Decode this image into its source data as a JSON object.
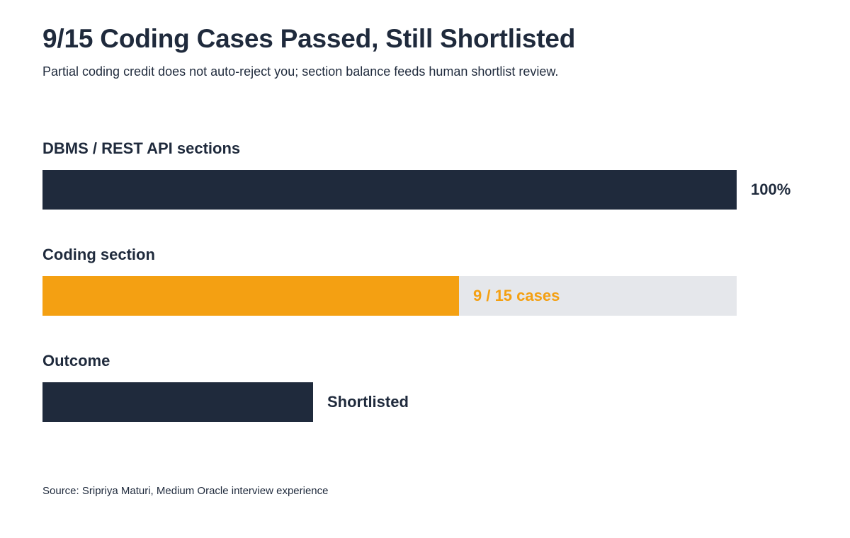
{
  "chart_data": {
    "type": "bar",
    "title": "9/15 Coding Cases Passed, Still Shortlisted",
    "subtitle": "Partial coding credit does not auto-reject you; section balance feeds human shortlist review.",
    "source": "Source: Sripriya Maturi, Medium Oracle interview experience",
    "bars": [
      {
        "category": "DBMS / REST API sections",
        "value": 1.0,
        "label": "100%",
        "color": "#1f2a3c",
        "label_color": "#1f2a3c",
        "track": false,
        "label_inside": false
      },
      {
        "category": "Coding section",
        "value": 0.6,
        "label": "9 / 15 cases",
        "color": "#f4a012",
        "label_color": "#f4a012",
        "track": true,
        "track_color": "#e5e7eb",
        "label_inside": true
      },
      {
        "category": "Outcome",
        "value": 0.39,
        "label": "Shortlisted",
        "color": "#1f2a3c",
        "label_color": "#1f2a3c",
        "track": false,
        "label_inside": false
      }
    ],
    "xlim": [
      0,
      1
    ],
    "grid": false
  }
}
